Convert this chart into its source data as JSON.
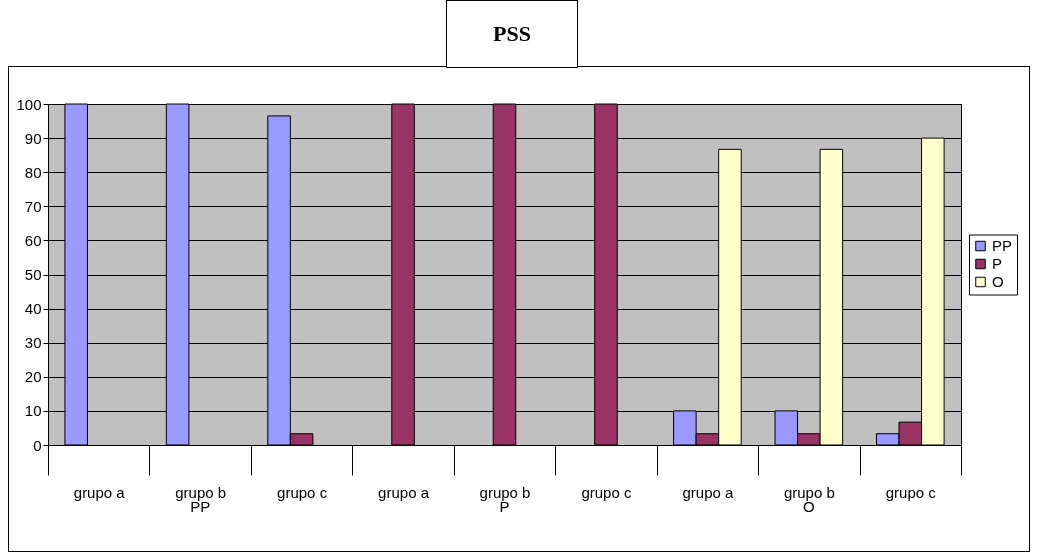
{
  "chart_data": {
    "type": "bar",
    "title": "PSS",
    "categories": [
      "grupo a",
      "grupo b",
      "grupo c",
      "grupo a",
      "grupo b",
      "grupo c",
      "grupo a",
      "grupo b",
      "grupo c"
    ],
    "series": [
      {
        "name": "PP",
        "color": "#9999ff",
        "values": [
          100,
          100,
          96.5,
          null,
          null,
          null,
          10,
          10,
          3.3
        ]
      },
      {
        "name": "P",
        "color": "#993366",
        "values": [
          null,
          null,
          3.3,
          100,
          100,
          100,
          3.3,
          3.3,
          6.7
        ]
      },
      {
        "name": "O",
        "color": "#ffffcc",
        "values": [
          null,
          null,
          null,
          null,
          null,
          null,
          86.7,
          86.7,
          90
        ]
      }
    ],
    "annotations": [
      "PP",
      "P",
      "O"
    ],
    "ylim": [
      0,
      100
    ],
    "yticks": [
      0,
      10,
      20,
      30,
      40,
      50,
      60,
      70,
      80,
      90,
      100
    ],
    "grid": "y",
    "legend": "right"
  }
}
